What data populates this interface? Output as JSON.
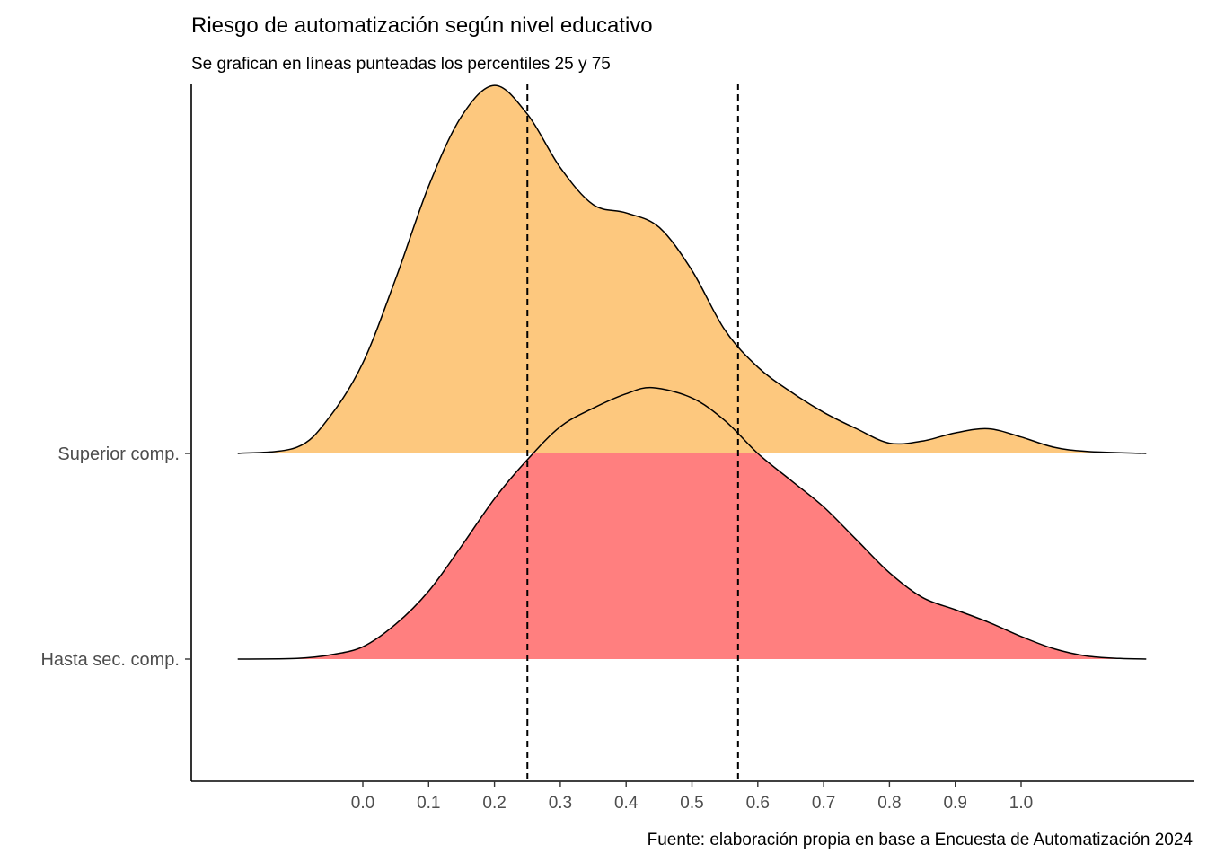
{
  "chart_data": {
    "type": "ridgeline",
    "title": "Riesgo de automatización según nivel educativo",
    "subtitle": "Se grafican en líneas punteadas los percentiles 25 y 75",
    "caption": "Fuente: elaboración propia en base a Encuesta de Automatización 2024",
    "xlabel": "",
    "ylabel": "",
    "x_ticks": [
      "0.0",
      "0.1",
      "0.2",
      "0.3",
      "0.4",
      "0.5",
      "0.6",
      "0.7",
      "0.8",
      "0.9",
      "1.0"
    ],
    "xlim": [
      -0.26,
      1.22
    ],
    "grid": false,
    "reference_lines": [
      {
        "x": 0.25,
        "style": "dashed",
        "color": "#000000"
      },
      {
        "x": 0.57,
        "style": "dashed",
        "color": "#000000"
      }
    ],
    "series": [
      {
        "name": "Hasta sec. comp.",
        "color": "#FF7F7F",
        "scaled_density": [
          [
            -0.19,
            0.0
          ],
          [
            -0.1,
            0.003
          ],
          [
            -0.05,
            0.02
          ],
          [
            0.0,
            0.06
          ],
          [
            0.05,
            0.17
          ],
          [
            0.1,
            0.33
          ],
          [
            0.15,
            0.55
          ],
          [
            0.2,
            0.78
          ],
          [
            0.25,
            0.97
          ],
          [
            0.3,
            1.13
          ],
          [
            0.35,
            1.22
          ],
          [
            0.4,
            1.29
          ],
          [
            0.44,
            1.32
          ],
          [
            0.5,
            1.27
          ],
          [
            0.55,
            1.16
          ],
          [
            0.6,
            1.0
          ],
          [
            0.65,
            0.87
          ],
          [
            0.7,
            0.74
          ],
          [
            0.75,
            0.58
          ],
          [
            0.8,
            0.42
          ],
          [
            0.85,
            0.3
          ],
          [
            0.9,
            0.24
          ],
          [
            0.95,
            0.18
          ],
          [
            1.0,
            0.11
          ],
          [
            1.05,
            0.05
          ],
          [
            1.1,
            0.015
          ],
          [
            1.15,
            0.003
          ],
          [
            1.19,
            0.0
          ]
        ]
      },
      {
        "name": "Superior comp.",
        "color": "#FDC87E",
        "scaled_density": [
          [
            -0.19,
            0.0
          ],
          [
            -0.1,
            0.03
          ],
          [
            -0.05,
            0.18
          ],
          [
            0.0,
            0.44
          ],
          [
            0.05,
            0.85
          ],
          [
            0.1,
            1.3
          ],
          [
            0.15,
            1.64
          ],
          [
            0.2,
            1.79
          ],
          [
            0.25,
            1.65
          ],
          [
            0.3,
            1.39
          ],
          [
            0.35,
            1.21
          ],
          [
            0.4,
            1.17
          ],
          [
            0.45,
            1.1
          ],
          [
            0.5,
            0.89
          ],
          [
            0.55,
            0.6
          ],
          [
            0.6,
            0.42
          ],
          [
            0.65,
            0.3
          ],
          [
            0.7,
            0.2
          ],
          [
            0.75,
            0.12
          ],
          [
            0.8,
            0.05
          ],
          [
            0.85,
            0.06
          ],
          [
            0.9,
            0.1
          ],
          [
            0.95,
            0.12
          ],
          [
            1.0,
            0.08
          ],
          [
            1.05,
            0.03
          ],
          [
            1.1,
            0.01
          ],
          [
            1.19,
            0.0
          ]
        ]
      }
    ]
  }
}
